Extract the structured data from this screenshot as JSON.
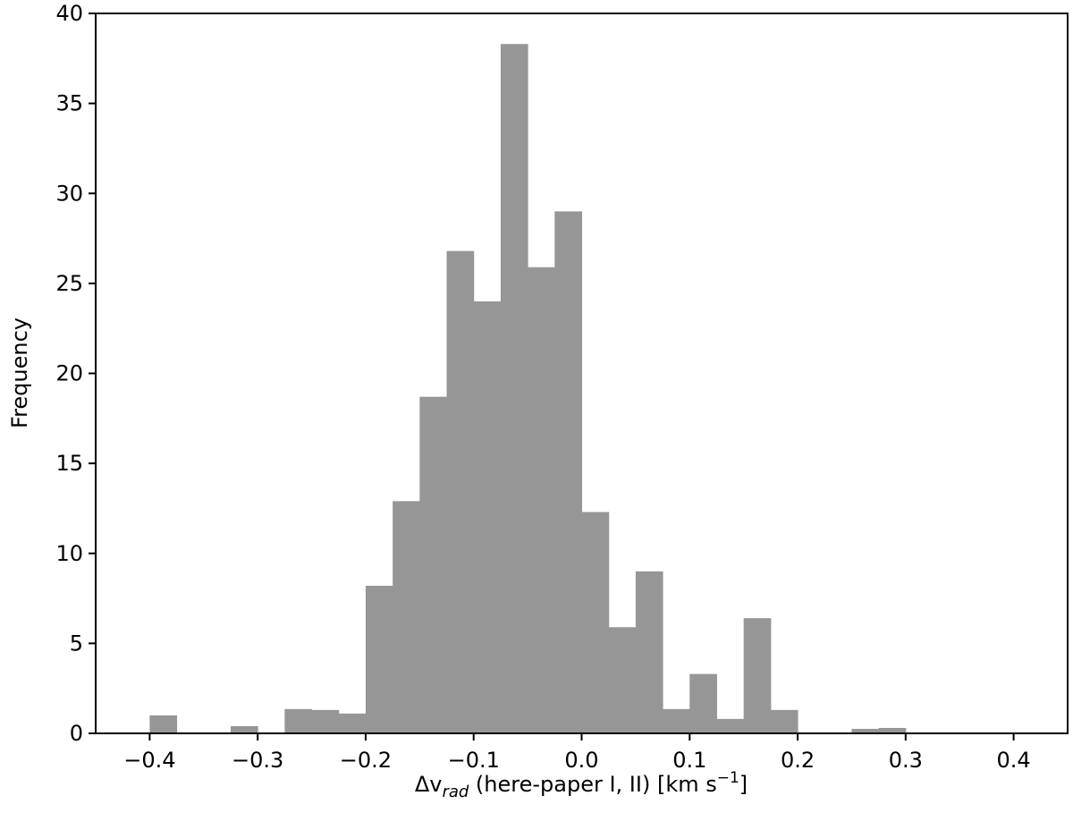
{
  "chart_data": {
    "type": "bar",
    "subtype": "histogram",
    "title": "",
    "xlabel": {
      "prefix": "Δv",
      "subscript": "rad",
      "middle": " (here-paper I, II) [km s",
      "superscript": "−1",
      "suffix": "]"
    },
    "ylabel": "Frequency",
    "xlim": [
      -0.45,
      0.45
    ],
    "ylim": [
      0,
      40
    ],
    "xticks": [
      -0.4,
      -0.3,
      -0.2,
      -0.1,
      0.0,
      0.1,
      0.2,
      0.3,
      0.4
    ],
    "xtick_labels": [
      "−0.4",
      "−0.3",
      "−0.2",
      "−0.1",
      "0.0",
      "0.1",
      "0.2",
      "0.3",
      "0.4"
    ],
    "yticks": [
      0,
      5,
      10,
      15,
      20,
      25,
      30,
      35,
      40
    ],
    "ytick_labels": [
      "0",
      "5",
      "10",
      "15",
      "20",
      "25",
      "30",
      "35",
      "40"
    ],
    "bar_color": "#969696",
    "bin_width": 0.025,
    "bins": [
      {
        "x0": -0.4,
        "x1": -0.375,
        "value": 1.0
      },
      {
        "x0": -0.325,
        "x1": -0.3,
        "value": 0.4
      },
      {
        "x0": -0.275,
        "x1": -0.25,
        "value": 1.35
      },
      {
        "x0": -0.25,
        "x1": -0.225,
        "value": 1.3
      },
      {
        "x0": -0.225,
        "x1": -0.2,
        "value": 1.1
      },
      {
        "x0": -0.2,
        "x1": -0.175,
        "value": 8.2
      },
      {
        "x0": -0.175,
        "x1": -0.15,
        "value": 12.9
      },
      {
        "x0": -0.15,
        "x1": -0.125,
        "value": 18.7
      },
      {
        "x0": -0.125,
        "x1": -0.1,
        "value": 26.8
      },
      {
        "x0": -0.1,
        "x1": -0.075,
        "value": 24.0
      },
      {
        "x0": -0.075,
        "x1": -0.05,
        "value": 38.3
      },
      {
        "x0": -0.05,
        "x1": -0.025,
        "value": 25.9
      },
      {
        "x0": -0.025,
        "x1": 0.0,
        "value": 29.0
      },
      {
        "x0": 0.0,
        "x1": 0.025,
        "value": 12.3
      },
      {
        "x0": 0.025,
        "x1": 0.05,
        "value": 5.9
      },
      {
        "x0": 0.05,
        "x1": 0.075,
        "value": 9.0
      },
      {
        "x0": 0.075,
        "x1": 0.1,
        "value": 1.35
      },
      {
        "x0": 0.1,
        "x1": 0.125,
        "value": 3.3
      },
      {
        "x0": 0.125,
        "x1": 0.15,
        "value": 0.8
      },
      {
        "x0": 0.15,
        "x1": 0.175,
        "value": 6.4
      },
      {
        "x0": 0.175,
        "x1": 0.2,
        "value": 1.3
      },
      {
        "x0": 0.25,
        "x1": 0.275,
        "value": 0.25
      },
      {
        "x0": 0.275,
        "x1": 0.3,
        "value": 0.3
      }
    ],
    "grid": false,
    "legend": "none"
  }
}
